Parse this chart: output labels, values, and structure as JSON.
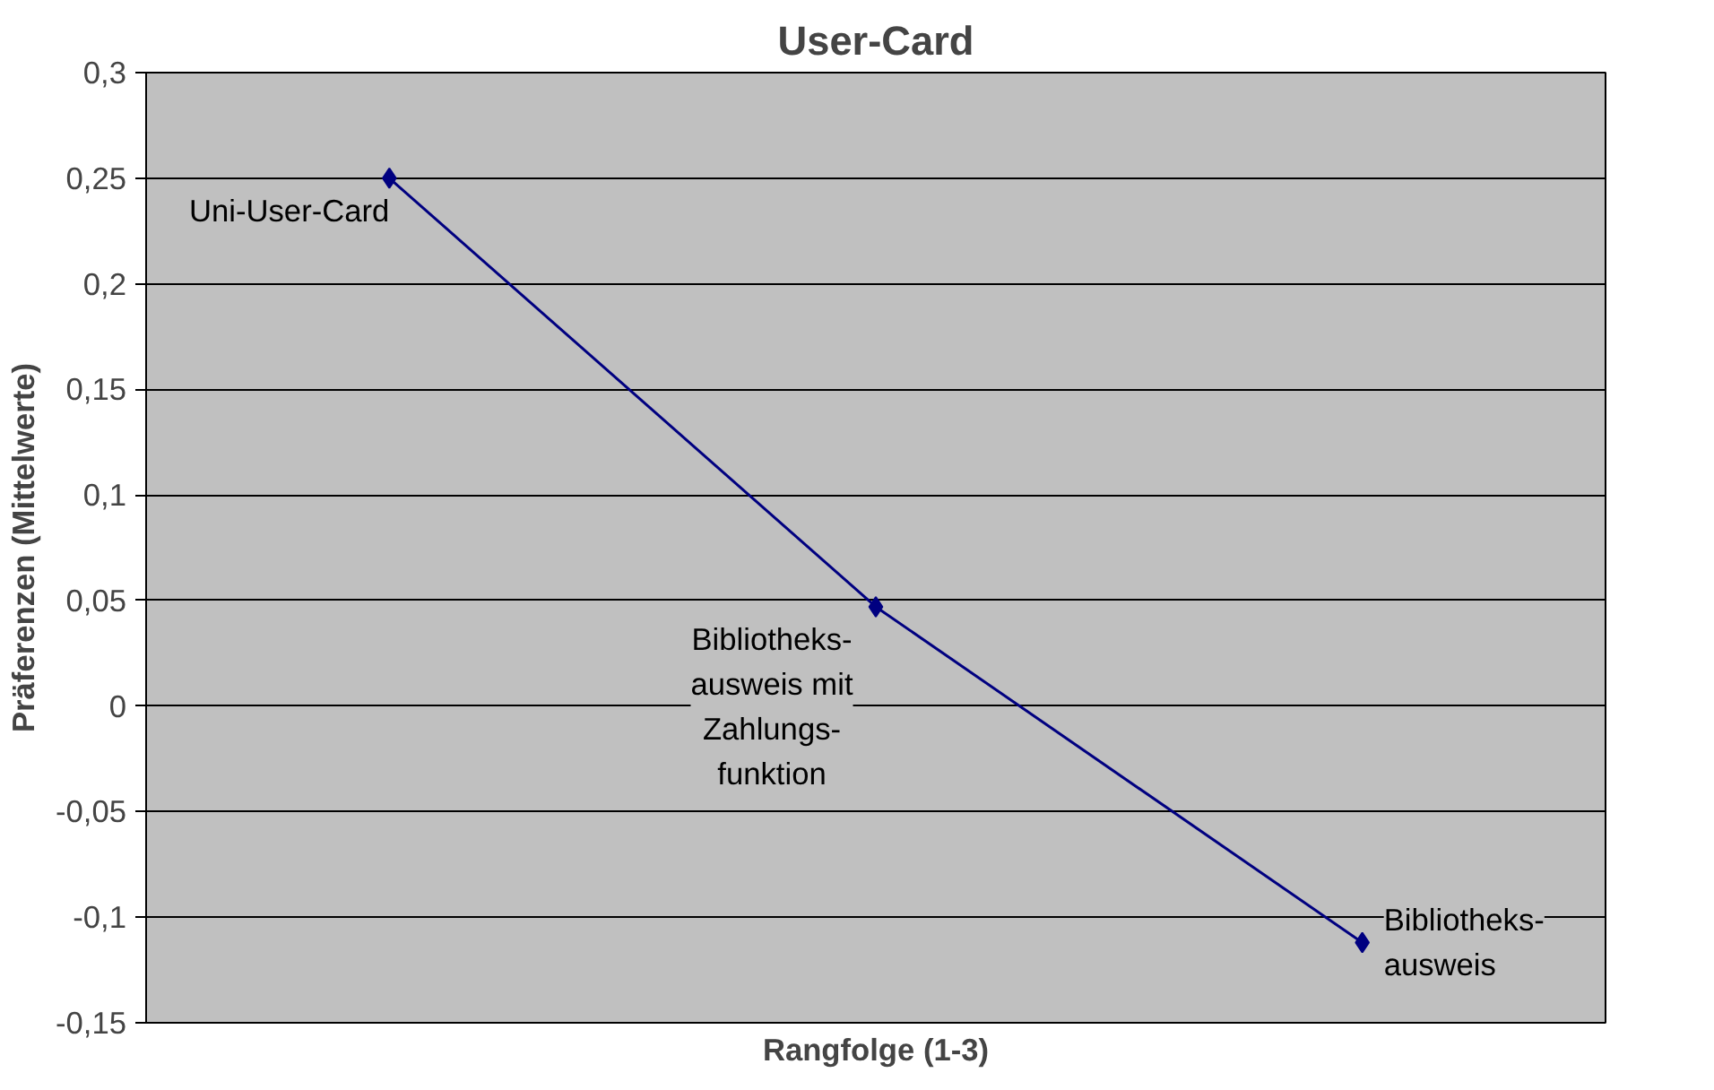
{
  "chart_data": {
    "type": "line",
    "title": "User-Card",
    "xlabel": "Rangfolge (1-3)",
    "ylabel": "Präferenzen (Mittelwerte)",
    "categories": [
      null,
      null,
      null
    ],
    "series": [
      {
        "color": "#000080",
        "values": [
          0.25,
          0.047,
          -0.112
        ]
      }
    ],
    "ylim": [
      -0.15,
      0.3
    ],
    "yticks": [
      {
        "value": -0.15,
        "label": "-0,15"
      },
      {
        "value": -0.1,
        "label": "-0,1"
      },
      {
        "value": -0.05,
        "label": "-0,05"
      },
      {
        "value": 0,
        "label": "0"
      },
      {
        "value": 0.05,
        "label": "0,05"
      },
      {
        "value": 0.1,
        "label": "0,1"
      },
      {
        "value": 0.15,
        "label": "0,15"
      },
      {
        "value": 0.2,
        "label": "0,2"
      },
      {
        "value": 0.25,
        "label": "0,25"
      },
      {
        "value": 0.3,
        "label": "0,3"
      }
    ],
    "grid": "y",
    "marker": "diamond",
    "line_style": "solid",
    "tick_labels": "y",
    "annotations": [
      "Uni-User-Card",
      "Bibliotheks-\nausweis mit\nZahlungs-\nfunktion",
      "Bibliotheks-\nausweis"
    ]
  }
}
